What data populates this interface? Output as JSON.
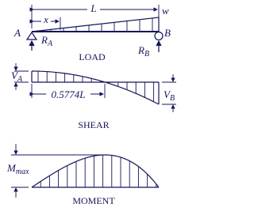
{
  "load": {
    "length": "L",
    "position": "x",
    "intensity": "w",
    "support_left": "A",
    "support_right": "B",
    "reaction_left": {
      "symbol": "R",
      "subscript": "A"
    },
    "reaction_right": {
      "symbol": "R",
      "subscript": "B"
    },
    "caption": "LOAD"
  },
  "shear": {
    "left": {
      "symbol": "V",
      "subscript": "A"
    },
    "right": {
      "symbol": "V",
      "subscript": "B"
    },
    "zero_location": "0.5774L",
    "caption": "SHEAR"
  },
  "moment": {
    "max": {
      "symbol": "M",
      "subscript": "max"
    },
    "caption": "MOMENT"
  }
}
